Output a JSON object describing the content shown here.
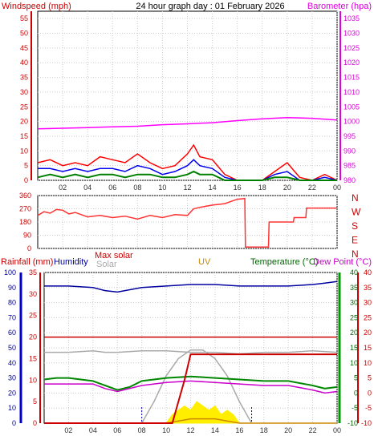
{
  "header": {
    "title": "24 hour graph day : 01 February 2026",
    "left_label": "Windspeed (mph)",
    "right_label": "Barometer (hpa)"
  },
  "colors": {
    "wind_gust": "#ff0000",
    "wind_avg": "#0000ee",
    "wind_low": "#008000",
    "barometer": "#ff00ff",
    "direction": "#ff3333",
    "rain": "#0000ee",
    "humidity": "#0000a0",
    "max_solar": "#aaaaaa",
    "solar": "#ffee00",
    "uv": "#cc8800",
    "temperature": "#006600",
    "dew_point": "#cc00cc",
    "rain_total": "#cc0000",
    "grid": "#cccccc"
  },
  "x_ticks": [
    "02",
    "04",
    "06",
    "08",
    "10",
    "12",
    "14",
    "16",
    "18",
    "20",
    "22",
    "00"
  ],
  "chart_data": [
    {
      "type": "line",
      "name": "wind-barometer",
      "y_left_ticks": [
        "0",
        "5",
        "10",
        "15",
        "20",
        "25",
        "30",
        "35",
        "40",
        "45",
        "50",
        "55"
      ],
      "ylim_left": [
        0,
        57.5
      ],
      "y_right_ticks": [
        "980",
        "985",
        "990",
        "995",
        "1000",
        "1005",
        "1010",
        "1015",
        "1020",
        "1025",
        "1030",
        "1035"
      ],
      "ylim_right": [
        980,
        1037.5
      ],
      "barometer": {
        "x": [
          0,
          2,
          4,
          6,
          8,
          10,
          12,
          14,
          16,
          18,
          20,
          22,
          24
        ],
        "values": [
          997.5,
          997.7,
          997.9,
          998.2,
          998.4,
          998.9,
          999.2,
          999.6,
          1000.3,
          1000.9,
          1001.3,
          1001.1,
          1000.5
        ]
      },
      "gust": {
        "x": [
          0,
          1,
          2,
          3,
          4,
          5,
          6,
          7,
          8,
          9,
          10,
          11,
          12,
          12.5,
          13,
          14,
          15,
          16,
          17,
          18,
          19,
          20,
          21,
          22,
          23,
          24
        ],
        "values": [
          6,
          7,
          5,
          6,
          5,
          8,
          7,
          6,
          9,
          6,
          4,
          5,
          9,
          12,
          8,
          7,
          2,
          0,
          0,
          0,
          3,
          6,
          1,
          0,
          2,
          0
        ]
      },
      "average": {
        "x": [
          0,
          1,
          2,
          3,
          4,
          5,
          6,
          7,
          8,
          9,
          10,
          11,
          12,
          12.5,
          13,
          14,
          15,
          16,
          17,
          18,
          19,
          20,
          21,
          22,
          23,
          24
        ],
        "values": [
          4,
          4,
          3,
          4,
          3,
          4,
          4,
          3,
          5,
          4,
          2,
          3,
          5,
          7,
          5,
          4,
          1,
          0,
          0,
          0,
          2,
          3,
          0,
          0,
          1,
          0
        ]
      },
      "low": {
        "x": [
          0,
          1,
          2,
          3,
          4,
          5,
          6,
          7,
          8,
          9,
          10,
          11,
          12,
          12.5,
          13,
          14,
          15,
          16,
          17,
          18,
          19,
          20,
          21,
          22,
          23,
          24
        ],
        "values": [
          1,
          2,
          1,
          2,
          1,
          2,
          2,
          1,
          2,
          2,
          1,
          1,
          2,
          3,
          2,
          2,
          0,
          0,
          0,
          0,
          1,
          1,
          0,
          0,
          0,
          0
        ]
      }
    },
    {
      "type": "line",
      "name": "wind-direction",
      "y_ticks": [
        "0",
        "90",
        "180",
        "270",
        "360"
      ],
      "ylim": [
        0,
        360
      ],
      "compass_labels": [
        "N",
        "W",
        "S",
        "E",
        "N"
      ],
      "x": [
        0,
        0.5,
        1,
        1.5,
        2,
        2.5,
        3,
        4,
        5,
        6,
        7,
        8,
        9,
        10,
        11,
        12,
        12.5,
        13,
        14,
        15,
        16,
        16.6,
        16.65,
        18.5,
        18.55,
        20.5,
        20.55,
        21.5,
        21.55,
        24
      ],
      "values": [
        225,
        250,
        240,
        265,
        260,
        235,
        245,
        215,
        225,
        210,
        220,
        200,
        225,
        210,
        230,
        225,
        270,
        280,
        295,
        305,
        335,
        340,
        10,
        10,
        180,
        180,
        210,
        210,
        275,
        275
      ]
    },
    {
      "type": "line",
      "name": "rain-humidity-solar-temperature",
      "left_labels": {
        "rain": "Rainfall (mm)",
        "humidity": "Humidity"
      },
      "center_labels": {
        "max_solar": "Max solar",
        "solar": "Solar",
        "uv": "UV"
      },
      "right_labels": {
        "temperature": "Temperature (°C)",
        "dew_point": "Dew Point (°C)"
      },
      "rain_ticks": [
        "0",
        "5",
        "10",
        "15",
        "20",
        "25",
        "30",
        "35"
      ],
      "rain_ylim": [
        0,
        35
      ],
      "humidity_ticks": [
        "0",
        "10",
        "20",
        "30",
        "40",
        "50",
        "60",
        "70",
        "80",
        "90",
        "100"
      ],
      "humidity_ylim": [
        0,
        100
      ],
      "temp_ticks": [
        "-10",
        "-5",
        "0",
        "5",
        "10",
        "15",
        "20",
        "25",
        "30",
        "35",
        "40"
      ],
      "temp_ylim": [
        -10,
        40
      ],
      "humidity": {
        "x": [
          0,
          2,
          4,
          5,
          6,
          8,
          10,
          12,
          14,
          16,
          18,
          20,
          22,
          23,
          24
        ],
        "values": [
          91,
          91,
          90,
          88,
          87,
          90,
          91,
          92,
          92,
          91,
          91,
          91,
          92,
          93,
          94
        ]
      },
      "rain_total_mm": {
        "x": [
          0,
          10.5,
          11,
          11.5,
          12,
          24
        ],
        "values": [
          0,
          0,
          5,
          10,
          16,
          16
        ]
      },
      "rate_line": {
        "x": [
          0,
          24
        ],
        "values": [
          20,
          20
        ]
      },
      "temperature": {
        "x": [
          0,
          1,
          2,
          3,
          4,
          5,
          6,
          7,
          8,
          10,
          12,
          14,
          16,
          18,
          20,
          22,
          23,
          24
        ],
        "values": [
          4.5,
          5,
          5,
          4.5,
          4,
          2.5,
          1,
          2,
          4,
          5,
          5.5,
          5,
          4.5,
          4,
          4,
          2.5,
          1.5,
          2
        ]
      },
      "dew_point": {
        "x": [
          0,
          2,
          4,
          5,
          6,
          8,
          10,
          12,
          14,
          16,
          18,
          20,
          22,
          23,
          24
        ],
        "values": [
          3,
          3,
          3,
          1.5,
          0.5,
          2.5,
          3.5,
          4,
          3.5,
          3,
          2.5,
          2.5,
          1,
          0,
          0.5
        ]
      },
      "max_solar_curve": {
        "x": [
          8,
          9,
          10,
          11,
          12,
          13,
          14,
          15,
          16,
          17
        ],
        "values": [
          0,
          5,
          11,
          15,
          17,
          17,
          15,
          11,
          5,
          0
        ]
      },
      "solar": {
        "x": [
          10,
          10.5,
          11,
          11.5,
          12,
          12.5,
          13,
          13.5,
          14,
          14.5,
          15,
          15.5,
          16
        ],
        "values": [
          0,
          2,
          3,
          4,
          3,
          5,
          4,
          3,
          4,
          2,
          3,
          2,
          0
        ]
      },
      "uv": {
        "x": [
          0,
          2,
          4,
          6,
          8,
          10,
          12,
          14,
          16,
          18,
          20,
          22,
          24
        ],
        "values": [
          0,
          0,
          0,
          0,
          0,
          0,
          1,
          1,
          0,
          0,
          0,
          0,
          0
        ]
      },
      "grey_line": {
        "x": [
          0,
          2,
          4,
          5,
          6,
          8,
          10,
          12,
          14,
          16,
          18,
          20,
          22,
          24
        ],
        "values": [
          47,
          47,
          48,
          47,
          47,
          48,
          48,
          47,
          47,
          46,
          47,
          47,
          48,
          47
        ]
      }
    }
  ]
}
